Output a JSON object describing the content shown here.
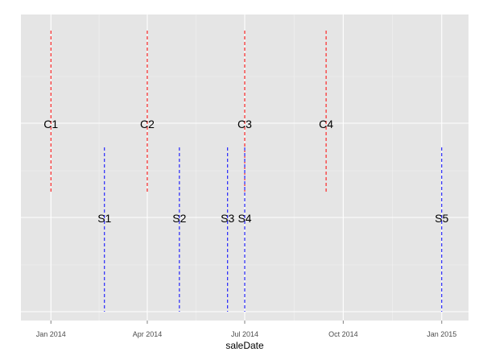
{
  "chart_data": {
    "type": "vline-timeline",
    "xlabel": "saleDate",
    "ylabel": "",
    "title": "",
    "grid": true,
    "xlim": [
      "2013-12-04",
      "2015-01-26"
    ],
    "x_ticks": [
      {
        "date": "2014-01-01",
        "label": "Jan 2014"
      },
      {
        "date": "2014-04-01",
        "label": "Apr 2014"
      },
      {
        "date": "2014-07-01",
        "label": "Jul 2014"
      },
      {
        "date": "2014-10-01",
        "label": "Oct 2014"
      },
      {
        "date": "2015-01-01",
        "label": "Jan 2015"
      }
    ],
    "series": [
      {
        "color": "#ff0000",
        "style": "dashed",
        "points": [
          {
            "label": "C1",
            "date": "2014-01-01"
          },
          {
            "label": "C2",
            "date": "2014-04-01"
          },
          {
            "label": "C3",
            "date": "2014-07-01"
          },
          {
            "label": "C4",
            "date": "2014-09-15"
          }
        ]
      },
      {
        "color": "#0000ff",
        "style": "dashed",
        "points": [
          {
            "label": "S1",
            "date": "2014-02-20"
          },
          {
            "label": "S2",
            "date": "2014-05-01"
          },
          {
            "label": "S3",
            "date": "2014-06-15"
          },
          {
            "label": "S4",
            "date": "2014-07-01"
          },
          {
            "label": "S5",
            "date": "2015-01-01"
          }
        ]
      }
    ]
  }
}
